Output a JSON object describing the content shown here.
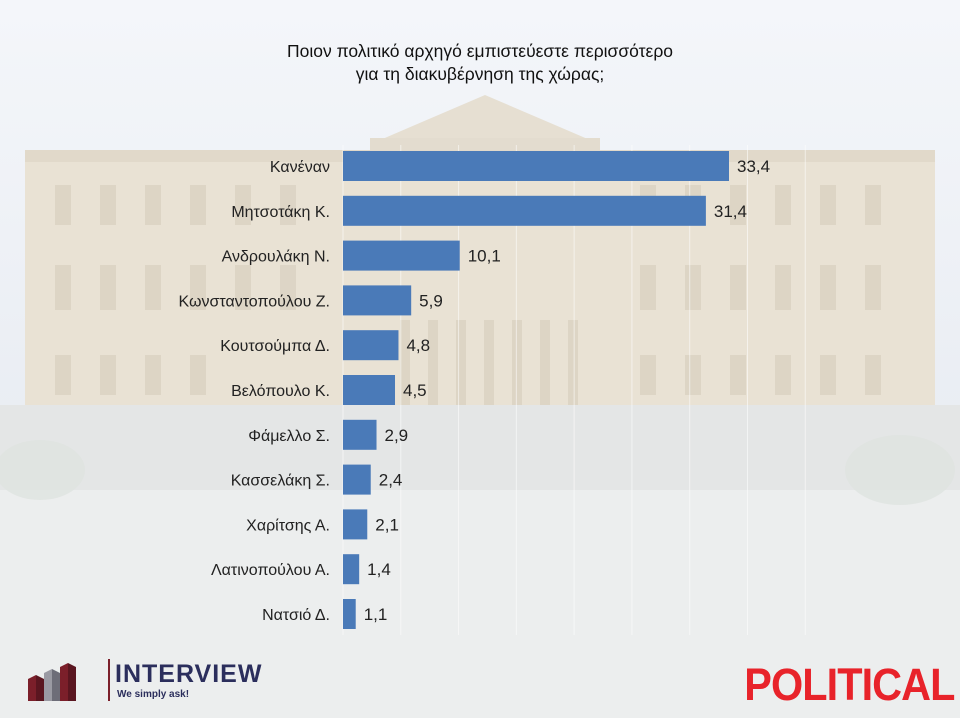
{
  "title": {
    "line1": "Ποιον πολιτικό αρχηγό εμπιστεύεστε περισσότερο",
    "line2": "για τη διακυβέρνηση της χώρας;"
  },
  "chart_data": {
    "type": "bar",
    "orientation": "horizontal",
    "title": "Ποιον πολιτικό αρχηγό εμπιστεύεστε περισσότερο για τη διακυβέρνηση της χώρας;",
    "categories": [
      "Κανέναν",
      "Μητσοτάκη Κ.",
      "Ανδρουλάκη Ν.",
      "Κωνσταντοπούλου Ζ.",
      "Κουτσούμπα Δ.",
      "Βελόπουλο Κ.",
      "Φάμελλο Σ.",
      "Κασσελάκη Σ.",
      "Χαρίτσης Α.",
      "Λατινοπούλου Α.",
      "Νατσιό Δ."
    ],
    "values": [
      33.4,
      31.4,
      10.1,
      5.9,
      4.8,
      4.5,
      2.9,
      2.4,
      2.1,
      1.4,
      1.1
    ],
    "value_labels": [
      "33,4",
      "31,4",
      "10,1",
      "5,9",
      "4,8",
      "4,5",
      "2,9",
      "2,4",
      "2,1",
      "1,4",
      "1,1"
    ],
    "xlim": [
      0,
      40
    ],
    "grid": true,
    "bar_color": "#4a7ab8"
  },
  "footer": {
    "brand_left": "INTERVIEW",
    "brand_left_tagline": "We simply ask!",
    "brand_right": "POLITICAL"
  },
  "colors": {
    "bar": "#4a7ab8",
    "political_red": "#e8232a",
    "interview_navy": "#2b2e5c",
    "interview_maroon": "#7b1f2a"
  }
}
